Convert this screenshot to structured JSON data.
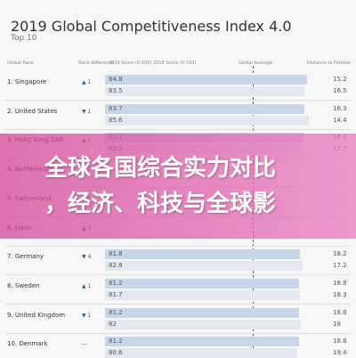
{
  "header": {
    "title": "2019 Global Competitiveness Index 4.0",
    "subtitle": "Top 10"
  },
  "table": {
    "columns": [
      "Global Rank",
      "Rank difference",
      "2019 Score (0-100)",
      "2018 Score (0-100)",
      "Global Average",
      "Distance to Frontier"
    ],
    "rows": [
      {
        "label": "1. Singapore",
        "change": "▲ 1",
        "score_2019": 84.8,
        "score_2018": 83.5,
        "distance_2019": 15.2,
        "distance_2018": 16.5
      },
      {
        "label": "2. United States",
        "change": "▼ 1",
        "score_2019": 83.7,
        "score_2018": 85.6,
        "distance_2019": 16.3,
        "distance_2018": 14.4
      },
      {
        "label": "3. Hong Kong SAR",
        "change": "▲ 4",
        "score_2019": 83.1,
        "score_2018": 82.3,
        "distance_2019": 16.9,
        "distance_2018": 17.7
      },
      {
        "label": "4. Netherlands",
        "change": "▲ 2"
      },
      {
        "label": "5. Switzerland",
        "change": "▼ 1"
      },
      {
        "label": "6. Japan",
        "change": "▲ 3"
      },
      {
        "label": "7. Germany",
        "change": "▼ 4",
        "score_2019": 81.8,
        "score_2018": 82.8,
        "distance_2019": 18.2,
        "distance_2018": 17.2
      },
      {
        "label": "8. Sweden",
        "change": "▲ 1",
        "score_2019": 81.2,
        "score_2018": 81.7,
        "distance_2019": 18.8,
        "distance_2018": 18.3
      },
      {
        "label": "9. United Kingdom",
        "change": "▼ 1",
        "score_2019": 81.2,
        "score_2018": 82.0,
        "distance_2019": 18.8,
        "distance_2018": 18.0
      },
      {
        "label": "10. Denmark",
        "change": "—",
        "score_2019": 81.2,
        "score_2018": 80.6,
        "distance_2019": 18.8,
        "distance_2018": 19.4
      }
    ]
  },
  "banner": {
    "lines": [
      "全球各国综合实力对比",
      "，经济、科技与全球影"
    ]
  }
}
